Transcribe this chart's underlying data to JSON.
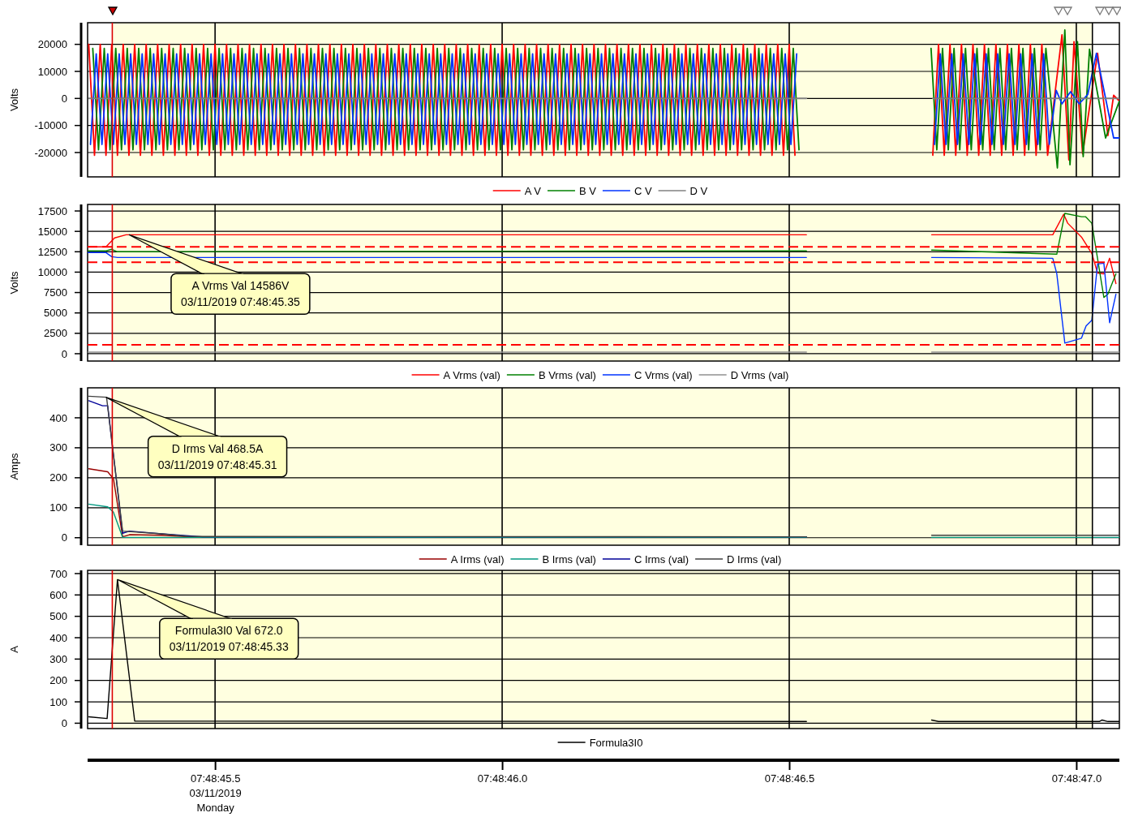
{
  "chart_data": [
    {
      "type": "line",
      "ylabel": "Volts",
      "xlim": [
        "2019-03-11T07:48:45.278",
        "2019-03-11T07:48:47.075"
      ],
      "xticks": [
        "2019-03-11T07:48:45.500",
        "2019-03-11T07:48:46.000",
        "2019-03-11T07:48:46.500",
        "2019-03-11T07:48:47.000"
      ],
      "ylim": [
        -29000,
        28000
      ],
      "yticks": [
        -20000,
        -10000,
        0,
        10000,
        20000
      ],
      "grid": true,
      "tick_labels": "y",
      "legend": "bottom",
      "bands": [
        {
          "axis": "x",
          "from": "2019-03-11T07:48:45.321",
          "to": "2019-03-11T07:48:47.028",
          "color": "#ffffe0"
        }
      ],
      "ref_lines": [
        {
          "axis": "x",
          "value": "2019-03-11T07:48:45.321",
          "color": "#dd0000"
        },
        {
          "axis": "x",
          "value": "2019-03-11T07:48:47.028",
          "color": "#000000"
        }
      ],
      "series": [
        {
          "name": "A V",
          "color": "#ff0000",
          "x": [
            "2019-03-11T07:48:45.28",
            "2019-03-11T07:48:45.29",
            "2019-03-11T07:48:45.30",
            "2019-03-11T07:48:45.31",
            "2019-03-11T07:48:45.32",
            "2019-03-11T07:48:45.33",
            "2019-03-11T07:48:45.34",
            "2019-03-11T07:48:45.35",
            "2019-03-11T07:48:45.36",
            "2019-03-11T07:48:45.37",
            "2019-03-11T07:48:45.38",
            "2019-03-11T07:48:45.39",
            "2019-03-11T07:48:45.40",
            "2019-03-11T07:48:45.41",
            "2019-03-11T07:48:45.42",
            "2019-03-11T07:48:45.43",
            "2019-03-11T07:48:45.44",
            "2019-03-11T07:48:45.45",
            "2019-03-11T07:48:45.46",
            "2019-03-11T07:48:45.47",
            "2019-03-11T07:48:45.48",
            "2019-03-11T07:48:45.49",
            "2019-03-11T07:48:45.50",
            "2019-03-11T07:48:45.51",
            "2019-03-11T07:48:45.52",
            "2019-03-11T07:48:45.53",
            "2019-03-11T07:48:45.54",
            "2019-03-11T07:48:45.55",
            "2019-03-11T07:48:45.56",
            "2019-03-11T07:48:45.57",
            "2019-03-11T07:48:45.58",
            "2019-03-11T07:48:45.59",
            "2019-03-11T07:48:45.60",
            "2019-03-11T07:48:45.61",
            "2019-03-11T07:48:45.62",
            "2019-03-11T07:48:45.63",
            "2019-03-11T07:48:45.64",
            "2019-03-11T07:48:45.65",
            "2019-03-11T07:48:45.66",
            "2019-03-11T07:48:45.67",
            "2019-03-11T07:48:45.68",
            "2019-03-11T07:48:45.69",
            "2019-03-11T07:48:45.70",
            "2019-03-11T07:48:45.71",
            "2019-03-11T07:48:45.72",
            "2019-03-11T07:48:45.73",
            "2019-03-11T07:48:45.74",
            "2019-03-11T07:48:45.75",
            "2019-03-11T07:48:45.76",
            "2019-03-11T07:48:45.77",
            "2019-03-11T07:48:45.78",
            "2019-03-11T07:48:45.79",
            "2019-03-11T07:48:45.80",
            "2019-03-11T07:48:45.81",
            "2019-03-11T07:48:45.82",
            "2019-03-11T07:48:45.83",
            "2019-03-11T07:48:45.84",
            "2019-03-11T07:48:45.85",
            "2019-03-11T07:48:45.86",
            "2019-03-11T07:48:45.87",
            "2019-03-11T07:48:45.88",
            "2019-03-11T07:48:45.89",
            "2019-03-11T07:48:45.90",
            "2019-03-11T07:48:45.91",
            "2019-03-11T07:48:45.92",
            "2019-03-11T07:48:45.93",
            "2019-03-11T07:48:45.94",
            "2019-03-11T07:48:45.95",
            "2019-03-11T07:48:45.96",
            "2019-03-11T07:48:45.97",
            "2019-03-11T07:48:45.98",
            "2019-03-11T07:48:45.99",
            "2019-03-11T07:48:46.00",
            "2019-03-11T07:48:46.01",
            "2019-03-11T07:48:46.02",
            "2019-03-11T07:48:46.03",
            "2019-03-11T07:48:46.04",
            "2019-03-11T07:48:46.05",
            "2019-03-11T07:48:46.06",
            "2019-03-11T07:48:46.07",
            "2019-03-11T07:48:46.08",
            "2019-03-11T07:48:46.09",
            "2019-03-11T07:48:46.10",
            "2019-03-11T07:48:46.11",
            "2019-03-11T07:48:46.12",
            "2019-03-11T07:48:46.13",
            "2019-03-11T07:48:46.14",
            "2019-03-11T07:48:46.15",
            "2019-03-11T07:48:46.16",
            "2019-03-11T07:48:46.17",
            "2019-03-11T07:48:46.18",
            "2019-03-11T07:48:46.19",
            "2019-03-11T07:48:46.20",
            "2019-03-11T07:48:46.21",
            "2019-03-11T07:48:46.22",
            "2019-03-11T07:48:46.23",
            "2019-03-11T07:48:46.24",
            "2019-03-11T07:48:46.25",
            "2019-03-11T07:48:46.26",
            "2019-03-11T07:48:46.27",
            "2019-03-11T07:48:46.28",
            "2019-03-11T07:48:46.29",
            "2019-03-11T07:48:46.30",
            "2019-03-11T07:48:46.31",
            "2019-03-11T07:48:46.32",
            "2019-03-11T07:48:46.33",
            "2019-03-11T07:48:46.34",
            "2019-03-11T07:48:46.35",
            "2019-03-11T07:48:46.36",
            "2019-03-11T07:48:46.37",
            "2019-03-11T07:48:46.38",
            "2019-03-11T07:48:46.39",
            "2019-03-11T07:48:46.40",
            "2019-03-11T07:48:46.41",
            "2019-03-11T07:48:46.42",
            "2019-03-11T07:48:46.43",
            "2019-03-11T07:48:46.44",
            "2019-03-11T07:48:46.45",
            "2019-03-11T07:48:46.46",
            "2019-03-11T07:48:46.47",
            "2019-03-11T07:48:46.48",
            "2019-03-11T07:48:46.49",
            "2019-03-11T07:48:46.50",
            "2019-03-11T07:48:46.51",
            "2019-03-11T07:48:46.60",
            "2019-03-11T07:48:46.75",
            "2019-03-11T07:48:46.76",
            "2019-03-11T07:48:46.77",
            "2019-03-11T07:48:46.78",
            "2019-03-11T07:48:46.79",
            "2019-03-11T07:48:46.80",
            "2019-03-11T07:48:46.81",
            "2019-03-11T07:48:46.82",
            "2019-03-11T07:48:46.83",
            "2019-03-11T07:48:46.84",
            "2019-03-11T07:48:46.85",
            "2019-03-11T07:48:46.86",
            "2019-03-11T07:48:46.87",
            "2019-03-11T07:48:46.88",
            "2019-03-11T07:48:46.89",
            "2019-03-11T07:48:46.90",
            "2019-03-11T07:48:46.91",
            "2019-03-11T07:48:46.92",
            "2019-03-11T07:48:46.93",
            "2019-03-11T07:48:46.94",
            "2019-03-11T07:48:46.95",
            "2019-03-11T07:48:46.975",
            "2019-03-11T07:48:46.987",
            "2019-03-11T07:48:46.996",
            "2019-03-11T07:48:47.011",
            "2019-03-11T07:48:47.037",
            "2019-03-11T07:48:47.055",
            "2019-03-11T07:48:47.065",
            "2019-03-11T07:48:47.075"
          ],
          "values": [
            20000,
            -21000,
            20000,
            -21000,
            20000,
            -21000,
            20000,
            -21000,
            20000,
            -21000,
            20000,
            -21000,
            20000,
            -21000,
            20000,
            -21000,
            20000,
            -21000,
            20000,
            -21000,
            20000,
            -21000,
            20000,
            -21000,
            20000,
            -21000,
            20000,
            -21000,
            20000,
            -21000,
            20000,
            -21000,
            20000,
            -21000,
            20000,
            -21000,
            20000,
            -21000,
            20000,
            -21000,
            20000,
            -21000,
            20000,
            -21000,
            20000,
            -21000,
            20000,
            -21000,
            20000,
            -21000,
            20000,
            -21000,
            20000,
            -21000,
            20000,
            -21000,
            20000,
            -21000,
            20000,
            -21000,
            20000,
            -21000,
            20000,
            -21000,
            20000,
            -21000,
            20000,
            -21000,
            20000,
            -21000,
            20000,
            -21000,
            20000,
            -21000,
            20000,
            -21000,
            20000,
            -21000,
            20000,
            -21000,
            20000,
            -21000,
            20000,
            -21000,
            20000,
            -21000,
            20000,
            -21000,
            20000,
            -21000,
            20000,
            -21000,
            20000,
            -21000,
            20000,
            -21000,
            20000,
            -21000,
            20000,
            -21000,
            20000,
            -21000,
            20000,
            -21000,
            20000,
            -21000,
            20000,
            -21000,
            20000,
            -21000,
            20000,
            -21000,
            20000,
            -21000,
            20000,
            -21000,
            20000,
            -21000,
            20000,
            -21000,
            20000,
            -21000,
            20000,
            -21000,
            null,
            -21000,
            20000,
            -21000,
            20000,
            -21000,
            20000,
            -21000,
            20000,
            -21000,
            20000,
            -21000,
            20000,
            -21000,
            20000,
            -21000,
            20000,
            -21000,
            20000,
            -21000,
            20000,
            -21000,
            23500,
            -22700,
            21000,
            -20500,
            16700,
            -13700,
            1200,
            -1000
          ]
        },
        {
          "name": "B V",
          "color": "#008000",
          "x": [
            "2019-03-11T07:48:45.287",
            "2019-03-11T07:48:45.297",
            "2019-03-11T07:48:45.307",
            "2019-03-11T07:48:45.317",
            "2019-03-11T07:48:45.327",
            "2019-03-11T07:48:45.337",
            "2019-03-11T07:48:45.347",
            "2019-03-11T07:48:45.357",
            "2019-03-11T07:48:45.367",
            "2019-03-11T07:48:45.377",
            "2019-03-11T07:48:45.387",
            "2019-03-11T07:48:45.397",
            "2019-03-11T07:48:45.407",
            "2019-03-11T07:48:45.417",
            "2019-03-11T07:48:45.427",
            "2019-03-11T07:48:45.437",
            "2019-03-11T07:48:45.447",
            "2019-03-11T07:48:45.457",
            "2019-03-11T07:48:45.467",
            "2019-03-11T07:48:45.477",
            "2019-03-11T07:48:45.487",
            "2019-03-11T07:48:45.497",
            "2019-03-11T07:48:45.507",
            "2019-03-11T07:48:45.517",
            "2019-03-11T07:48:45.527",
            "2019-03-11T07:48:45.537",
            "2019-03-11T07:48:45.547",
            "2019-03-11T07:48:45.557",
            "2019-03-11T07:48:45.567",
            "2019-03-11T07:48:45.577",
            "2019-03-11T07:48:45.587",
            "2019-03-11T07:48:45.597",
            "2019-03-11T07:48:45.607",
            "2019-03-11T07:48:45.617",
            "2019-03-11T07:48:45.627",
            "2019-03-11T07:48:45.637",
            "2019-03-11T07:48:45.647",
            "2019-03-11T07:48:45.657",
            "2019-03-11T07:48:45.667",
            "2019-03-11T07:48:45.677",
            "2019-03-11T07:48:45.687",
            "2019-03-11T07:48:45.697",
            "2019-03-11T07:48:45.707",
            "2019-03-11T07:48:45.717",
            "2019-03-11T07:48:45.727",
            "2019-03-11T07:48:45.737",
            "2019-03-11T07:48:45.747",
            "2019-03-11T07:48:45.757",
            "2019-03-11T07:48:45.767",
            "2019-03-11T07:48:45.777",
            "2019-03-11T07:48:45.787",
            "2019-03-11T07:48:45.797",
            "2019-03-11T07:48:45.807",
            "2019-03-11T07:48:45.817",
            "2019-03-11T07:48:45.827",
            "2019-03-11T07:48:45.837",
            "2019-03-11T07:48:45.847",
            "2019-03-11T07:48:45.857",
            "2019-03-11T07:48:45.867",
            "2019-03-11T07:48:45.877",
            "2019-03-11T07:48:45.887",
            "2019-03-11T07:48:45.897",
            "2019-03-11T07:48:45.907",
            "2019-03-11T07:48:45.917",
            "2019-03-11T07:48:45.927",
            "2019-03-11T07:48:45.937",
            "2019-03-11T07:48:45.947",
            "2019-03-11T07:48:45.957",
            "2019-03-11T07:48:45.967",
            "2019-03-11T07:48:45.977",
            "2019-03-11T07:48:45.987",
            "2019-03-11T07:48:45.997",
            "2019-03-11T07:48:46.007",
            "2019-03-11T07:48:46.017",
            "2019-03-11T07:48:46.027",
            "2019-03-11T07:48:46.037",
            "2019-03-11T07:48:46.047",
            "2019-03-11T07:48:46.057",
            "2019-03-11T07:48:46.067",
            "2019-03-11T07:48:46.077",
            "2019-03-11T07:48:46.087",
            "2019-03-11T07:48:46.097",
            "2019-03-11T07:48:46.107",
            "2019-03-11T07:48:46.117",
            "2019-03-11T07:48:46.127",
            "2019-03-11T07:48:46.137",
            "2019-03-11T07:48:46.147",
            "2019-03-11T07:48:46.157",
            "2019-03-11T07:48:46.167",
            "2019-03-11T07:48:46.177",
            "2019-03-11T07:48:46.187",
            "2019-03-11T07:48:46.197",
            "2019-03-11T07:48:46.207",
            "2019-03-11T07:48:46.217",
            "2019-03-11T07:48:46.227",
            "2019-03-11T07:48:46.237",
            "2019-03-11T07:48:46.247",
            "2019-03-11T07:48:46.257",
            "2019-03-11T07:48:46.267",
            "2019-03-11T07:48:46.277",
            "2019-03-11T07:48:46.287",
            "2019-03-11T07:48:46.297",
            "2019-03-11T07:48:46.307",
            "2019-03-11T07:48:46.317",
            "2019-03-11T07:48:46.327",
            "2019-03-11T07:48:46.337",
            "2019-03-11T07:48:46.347",
            "2019-03-11T07:48:46.357",
            "2019-03-11T07:48:46.367",
            "2019-03-11T07:48:46.377",
            "2019-03-11T07:48:46.387",
            "2019-03-11T07:48:46.397",
            "2019-03-11T07:48:46.407",
            "2019-03-11T07:48:46.417",
            "2019-03-11T07:48:46.427",
            "2019-03-11T07:48:46.437",
            "2019-03-11T07:48:46.447",
            "2019-03-11T07:48:46.457",
            "2019-03-11T07:48:46.467",
            "2019-03-11T07:48:46.477",
            "2019-03-11T07:48:46.487",
            "2019-03-11T07:48:46.497",
            "2019-03-11T07:48:46.507",
            "2019-03-11T07:48:46.517",
            "2019-03-11T07:48:46.600",
            "2019-03-11T07:48:46.747",
            "2019-03-11T07:48:46.757",
            "2019-03-11T07:48:46.767",
            "2019-03-11T07:48:46.777",
            "2019-03-11T07:48:46.787",
            "2019-03-11T07:48:46.797",
            "2019-03-11T07:48:46.807",
            "2019-03-11T07:48:46.817",
            "2019-03-11T07:48:46.827",
            "2019-03-11T07:48:46.837",
            "2019-03-11T07:48:46.847",
            "2019-03-11T07:48:46.857",
            "2019-03-11T07:48:46.867",
            "2019-03-11T07:48:46.877",
            "2019-03-11T07:48:46.887",
            "2019-03-11T07:48:46.897",
            "2019-03-11T07:48:46.907",
            "2019-03-11T07:48:46.917",
            "2019-03-11T07:48:46.927",
            "2019-03-11T07:48:46.937",
            "2019-03-11T07:48:46.947",
            "2019-03-11T07:48:46.967",
            "2019-03-11T07:48:46.980",
            "2019-03-11T07:48:46.989",
            "2019-03-11T07:48:47.002",
            "2019-03-11T07:48:47.012",
            "2019-03-11T07:48:47.023",
            "2019-03-11T07:48:47.051",
            "2019-03-11T07:48:47.075"
          ],
          "values": [
            18500,
            -19000,
            18500,
            -19000,
            18500,
            -19000,
            18500,
            -19000,
            18500,
            -19000,
            18500,
            -19000,
            18500,
            -19000,
            18500,
            -19000,
            18500,
            -19000,
            18500,
            -19000,
            18500,
            -19000,
            18500,
            -19000,
            18500,
            -19000,
            18500,
            -19000,
            18500,
            -19000,
            18500,
            -19000,
            18500,
            -19000,
            18500,
            -19000,
            18500,
            -19000,
            18500,
            -19000,
            18500,
            -19000,
            18500,
            -19000,
            18500,
            -19000,
            18500,
            -19000,
            18500,
            -19000,
            18500,
            -19000,
            18500,
            -19000,
            18500,
            -19000,
            18500,
            -19000,
            18500,
            -19000,
            18500,
            -19000,
            18500,
            -19000,
            18500,
            -19000,
            18500,
            -19000,
            18500,
            -19000,
            18500,
            -19000,
            18500,
            -19000,
            18500,
            -19000,
            18500,
            -19000,
            18500,
            -19000,
            18500,
            -19000,
            18500,
            -19000,
            18500,
            -19000,
            18500,
            -19000,
            18500,
            -19000,
            18500,
            -19000,
            18500,
            -19000,
            18500,
            -19000,
            18500,
            -19000,
            18500,
            -19000,
            18500,
            -19000,
            18500,
            -19000,
            18500,
            -19000,
            18500,
            -19000,
            18500,
            -19000,
            18500,
            -19000,
            18500,
            -19000,
            18500,
            -19000,
            18500,
            -19000,
            18500,
            -19000,
            18500,
            -19000,
            18500,
            -19000,
            null,
            18500,
            -19000,
            18500,
            -19000,
            18500,
            -19000,
            18500,
            -19000,
            18500,
            -19000,
            18500,
            -19000,
            18500,
            -19000,
            18500,
            -19000,
            18500,
            -19000,
            18500,
            -19000,
            18500,
            -25700,
            25300,
            -24500,
            21000,
            -21500,
            18200,
            -14600,
            -1000
          ]
        },
        {
          "name": "C V",
          "color": "#0033ff",
          "x": [
            "2019-03-11T07:48:45.283",
            "2019-03-11T07:48:45.293",
            "2019-03-11T07:48:45.303",
            "2019-03-11T07:48:45.313",
            "2019-03-11T07:48:45.323",
            "2019-03-11T07:48:45.333",
            "2019-03-11T07:48:45.343",
            "2019-03-11T07:48:45.353",
            "2019-03-11T07:48:45.363",
            "2019-03-11T07:48:45.373",
            "2019-03-11T07:48:45.383",
            "2019-03-11T07:48:45.393",
            "2019-03-11T07:48:45.403",
            "2019-03-11T07:48:45.413",
            "2019-03-11T07:48:45.423",
            "2019-03-11T07:48:45.433",
            "2019-03-11T07:48:45.443",
            "2019-03-11T07:48:45.453",
            "2019-03-11T07:48:45.463",
            "2019-03-11T07:48:45.473",
            "2019-03-11T07:48:45.483",
            "2019-03-11T07:48:45.493",
            "2019-03-11T07:48:45.503",
            "2019-03-11T07:48:45.513",
            "2019-03-11T07:48:45.523",
            "2019-03-11T07:48:45.533",
            "2019-03-11T07:48:45.543",
            "2019-03-11T07:48:45.553",
            "2019-03-11T07:48:45.563",
            "2019-03-11T07:48:45.573",
            "2019-03-11T07:48:45.583",
            "2019-03-11T07:48:45.593",
            "2019-03-11T07:48:45.603",
            "2019-03-11T07:48:45.613",
            "2019-03-11T07:48:45.623",
            "2019-03-11T07:48:45.633",
            "2019-03-11T07:48:45.643",
            "2019-03-11T07:48:45.653",
            "2019-03-11T07:48:45.663",
            "2019-03-11T07:48:45.673",
            "2019-03-11T07:48:45.683",
            "2019-03-11T07:48:45.693",
            "2019-03-11T07:48:45.703",
            "2019-03-11T07:48:45.713",
            "2019-03-11T07:48:45.723",
            "2019-03-11T07:48:45.733",
            "2019-03-11T07:48:45.743",
            "2019-03-11T07:48:45.753",
            "2019-03-11T07:48:45.763",
            "2019-03-11T07:48:45.773",
            "2019-03-11T07:48:45.783",
            "2019-03-11T07:48:45.793",
            "2019-03-11T07:48:45.803",
            "2019-03-11T07:48:45.813",
            "2019-03-11T07:48:45.823",
            "2019-03-11T07:48:45.833",
            "2019-03-11T07:48:45.843",
            "2019-03-11T07:48:45.853",
            "2019-03-11T07:48:45.863",
            "2019-03-11T07:48:45.873",
            "2019-03-11T07:48:45.883",
            "2019-03-11T07:48:45.893",
            "2019-03-11T07:48:45.903",
            "2019-03-11T07:48:45.913",
            "2019-03-11T07:48:45.923",
            "2019-03-11T07:48:45.933",
            "2019-03-11T07:48:45.943",
            "2019-03-11T07:48:45.953",
            "2019-03-11T07:48:45.963",
            "2019-03-11T07:48:45.973",
            "2019-03-11T07:48:45.983",
            "2019-03-11T07:48:45.993",
            "2019-03-11T07:48:46.003",
            "2019-03-11T07:48:46.013",
            "2019-03-11T07:48:46.023",
            "2019-03-11T07:48:46.033",
            "2019-03-11T07:48:46.043",
            "2019-03-11T07:48:46.053",
            "2019-03-11T07:48:46.063",
            "2019-03-11T07:48:46.073",
            "2019-03-11T07:48:46.083",
            "2019-03-11T07:48:46.093",
            "2019-03-11T07:48:46.103",
            "2019-03-11T07:48:46.113",
            "2019-03-11T07:48:46.123",
            "2019-03-11T07:48:46.133",
            "2019-03-11T07:48:46.143",
            "2019-03-11T07:48:46.153",
            "2019-03-11T07:48:46.163",
            "2019-03-11T07:48:46.173",
            "2019-03-11T07:48:46.183",
            "2019-03-11T07:48:46.193",
            "2019-03-11T07:48:46.203",
            "2019-03-11T07:48:46.213",
            "2019-03-11T07:48:46.223",
            "2019-03-11T07:48:46.233",
            "2019-03-11T07:48:46.243",
            "2019-03-11T07:48:46.253",
            "2019-03-11T07:48:46.263",
            "2019-03-11T07:48:46.273",
            "2019-03-11T07:48:46.283",
            "2019-03-11T07:48:46.293",
            "2019-03-11T07:48:46.303",
            "2019-03-11T07:48:46.313",
            "2019-03-11T07:48:46.323",
            "2019-03-11T07:48:46.333",
            "2019-03-11T07:48:46.343",
            "2019-03-11T07:48:46.353",
            "2019-03-11T07:48:46.363",
            "2019-03-11T07:48:46.373",
            "2019-03-11T07:48:46.383",
            "2019-03-11T07:48:46.393",
            "2019-03-11T07:48:46.403",
            "2019-03-11T07:48:46.413",
            "2019-03-11T07:48:46.423",
            "2019-03-11T07:48:46.433",
            "2019-03-11T07:48:46.443",
            "2019-03-11T07:48:46.453",
            "2019-03-11T07:48:46.463",
            "2019-03-11T07:48:46.473",
            "2019-03-11T07:48:46.483",
            "2019-03-11T07:48:46.493",
            "2019-03-11T07:48:46.503",
            "2019-03-11T07:48:46.513",
            "2019-03-11T07:48:46.600",
            "2019-03-11T07:48:46.753",
            "2019-03-11T07:48:46.763",
            "2019-03-11T07:48:46.773",
            "2019-03-11T07:48:46.783",
            "2019-03-11T07:48:46.793",
            "2019-03-11T07:48:46.803",
            "2019-03-11T07:48:46.813",
            "2019-03-11T07:48:46.823",
            "2019-03-11T07:48:46.833",
            "2019-03-11T07:48:46.843",
            "2019-03-11T07:48:46.853",
            "2019-03-11T07:48:46.863",
            "2019-03-11T07:48:46.873",
            "2019-03-11T07:48:46.883",
            "2019-03-11T07:48:46.893",
            "2019-03-11T07:48:46.903",
            "2019-03-11T07:48:46.913",
            "2019-03-11T07:48:46.923",
            "2019-03-11T07:48:46.933",
            "2019-03-11T07:48:46.943",
            "2019-03-11T07:48:46.953",
            "2019-03-11T07:48:46.965",
            "2019-03-11T07:48:46.975",
            "2019-03-11T07:48:46.990",
            "2019-03-11T07:48:47.005",
            "2019-03-11T07:48:47.020",
            "2019-03-11T07:48:47.035",
            "2019-03-11T07:48:47.065",
            "2019-03-11T07:48:47.075"
          ],
          "values": [
            -17000,
            16500,
            -17000,
            16500,
            -17000,
            16500,
            -17000,
            16500,
            -17000,
            16500,
            -17000,
            16500,
            -17000,
            16500,
            -17000,
            16500,
            -17000,
            16500,
            -17000,
            16500,
            -17000,
            16500,
            -17000,
            16500,
            -17000,
            16500,
            -17000,
            16500,
            -17000,
            16500,
            -17000,
            16500,
            -17000,
            16500,
            -17000,
            16500,
            -17000,
            16500,
            -17000,
            16500,
            -17000,
            16500,
            -17000,
            16500,
            -17000,
            16500,
            -17000,
            16500,
            -17000,
            16500,
            -17000,
            16500,
            -17000,
            16500,
            -17000,
            16500,
            -17000,
            16500,
            -17000,
            16500,
            -17000,
            16500,
            -17000,
            16500,
            -17000,
            16500,
            -17000,
            16500,
            -17000,
            16500,
            -17000,
            16500,
            -17000,
            16500,
            -17000,
            16500,
            -17000,
            16500,
            -17000,
            16500,
            -17000,
            16500,
            -17000,
            16500,
            -17000,
            16500,
            -17000,
            16500,
            -17000,
            16500,
            -17000,
            16500,
            -17000,
            16500,
            -17000,
            16500,
            -17000,
            16500,
            -17000,
            16500,
            -17000,
            16500,
            -17000,
            16500,
            -17000,
            16500,
            -17000,
            16500,
            -17000,
            16500,
            -17000,
            16500,
            -17000,
            16500,
            -17000,
            16500,
            -17000,
            16500,
            -17000,
            16500,
            -17000,
            16500,
            -17000,
            16500,
            null,
            -17000,
            16500,
            -17000,
            16500,
            -17000,
            16500,
            -17000,
            16500,
            -17000,
            16500,
            -17000,
            16500,
            -17000,
            16500,
            -17000,
            16500,
            -17000,
            16500,
            -17000,
            16500,
            -17000,
            3000,
            -2000,
            2500,
            -2000,
            1500,
            16700,
            -14600,
            -14600
          ]
        },
        {
          "name": "D V",
          "color": "#808080",
          "x": [
            "2019-03-11T07:48:45.28",
            "2019-03-11T07:48:46.53",
            "2019-03-11T07:48:46.60",
            "2019-03-11T07:48:46.75",
            "2019-03-11T07:48:47.075"
          ],
          "values": [
            0,
            0,
            null,
            0,
            0
          ]
        }
      ]
    },
    {
      "type": "line",
      "ylabel": "Volts",
      "xlim": [
        "2019-03-11T07:48:45.278",
        "2019-03-11T07:48:47.075"
      ],
      "xticks": [
        "2019-03-11T07:48:45.500",
        "2019-03-11T07:48:46.000",
        "2019-03-11T07:48:46.500",
        "2019-03-11T07:48:47.000"
      ],
      "ylim": [
        -900,
        18300
      ],
      "yticks": [
        0,
        2500,
        5000,
        7500,
        10000,
        12500,
        15000,
        17500
      ],
      "grid": true,
      "tick_labels": "y",
      "legend": "bottom",
      "bands": [
        {
          "axis": "x",
          "from": "2019-03-11T07:48:45.321",
          "to": "2019-03-11T07:48:47.028",
          "color": "#ffffe0"
        }
      ],
      "ref_lines": [
        {
          "axis": "y",
          "value": 13100,
          "color": "#ff0000",
          "line_style": "dashed"
        },
        {
          "axis": "y",
          "value": 11200,
          "color": "#ff0000",
          "line_style": "dashed"
        },
        {
          "axis": "y",
          "value": 1100,
          "color": "#ff0000",
          "line_style": "dashed"
        },
        {
          "axis": "x",
          "value": "2019-03-11T07:48:45.321",
          "color": "#dd0000"
        },
        {
          "axis": "x",
          "value": "2019-03-11T07:48:47.028",
          "color": "#000000"
        }
      ],
      "annotations": [
        {
          "text": "A Vrms Val 14586V\n03/11/2019 07:48:45.35",
          "x": "2019-03-11T07:48:45.35",
          "y": 14586
        }
      ],
      "series": [
        {
          "name": "A Vrms (val)",
          "color": "#ff0000",
          "x": [
            "2019-03-11T07:48:45.278",
            "2019-03-11T07:48:45.310",
            "2019-03-11T07:48:45.325",
            "2019-03-11T07:48:45.345",
            "2019-03-11T07:48:46.530",
            "2019-03-11T07:48:46.600",
            "2019-03-11T07:48:46.748",
            "2019-03-11T07:48:46.959",
            "2019-03-11T07:48:46.978",
            "2019-03-11T07:48:46.985",
            "2019-03-11T07:48:47.009",
            "2019-03-11T07:48:47.027",
            "2019-03-11T07:48:47.037",
            "2019-03-11T07:48:47.048",
            "2019-03-11T07:48:47.058",
            "2019-03-11T07:48:47.069"
          ],
          "values": [
            13100,
            13100,
            14200,
            14586,
            14586,
            null,
            14586,
            14586,
            17100,
            16000,
            14300,
            12300,
            9900,
            9800,
            11700,
            8600
          ]
        },
        {
          "name": "B Vrms (val)",
          "color": "#008000",
          "x": [
            "2019-03-11T07:48:45.278",
            "2019-03-11T07:48:45.310",
            "2019-03-11T07:48:45.320",
            "2019-03-11T07:48:45.330",
            "2019-03-11T07:48:46.530",
            "2019-03-11T07:48:46.600",
            "2019-03-11T07:48:46.748",
            "2019-03-11T07:48:46.966",
            "2019-03-11T07:48:46.980",
            "2019-03-11T07:48:47.009",
            "2019-03-11T07:48:47.016",
            "2019-03-11T07:48:47.027",
            "2019-03-11T07:48:47.048",
            "2019-03-11T07:48:47.055",
            "2019-03-11T07:48:47.069"
          ],
          "values": [
            12600,
            12600,
            12800,
            12500,
            12600,
            null,
            12700,
            12200,
            17200,
            16800,
            16800,
            16000,
            6900,
            7300,
            9800
          ]
        },
        {
          "name": "C Vrms (val)",
          "color": "#0033ff",
          "x": [
            "2019-03-11T07:48:45.278",
            "2019-03-11T07:48:45.310",
            "2019-03-11T07:48:45.320",
            "2019-03-11T07:48:45.330",
            "2019-03-11T07:48:46.530",
            "2019-03-11T07:48:46.600",
            "2019-03-11T07:48:46.748",
            "2019-03-11T07:48:46.959",
            "2019-03-11T07:48:46.966",
            "2019-03-11T07:48:46.980",
            "2019-03-11T07:48:47.009",
            "2019-03-11T07:48:47.017",
            "2019-03-11T07:48:47.027",
            "2019-03-11T07:48:47.037",
            "2019-03-11T07:48:47.048",
            "2019-03-11T07:48:47.058",
            "2019-03-11T07:48:47.069"
          ],
          "values": [
            12400,
            12400,
            11900,
            11800,
            11800,
            null,
            11800,
            11700,
            9800,
            1300,
            1900,
            3400,
            4100,
            11000,
            11100,
            3800,
            7300
          ]
        },
        {
          "name": "D Vrms (val)",
          "color": "#909090",
          "x": [
            "2019-03-11T07:48:45.278",
            "2019-03-11T07:48:46.530",
            "2019-03-11T07:48:46.600",
            "2019-03-11T07:48:46.748",
            "2019-03-11T07:48:47.075"
          ],
          "values": [
            200,
            200,
            null,
            200,
            200
          ]
        }
      ]
    },
    {
      "type": "line",
      "ylabel": "Amps",
      "xlim": [
        "2019-03-11T07:48:45.278",
        "2019-03-11T07:48:47.075"
      ],
      "xticks": [
        "2019-03-11T07:48:45.500",
        "2019-03-11T07:48:46.000",
        "2019-03-11T07:48:46.500",
        "2019-03-11T07:48:47.000"
      ],
      "ylim": [
        -25,
        500
      ],
      "yticks": [
        0,
        100,
        200,
        300,
        400
      ],
      "grid": true,
      "tick_labels": "y",
      "legend": "bottom",
      "bands": [
        {
          "axis": "x",
          "from": "2019-03-11T07:48:45.321",
          "to": "2019-03-11T07:48:47.028",
          "color": "#ffffe0"
        }
      ],
      "ref_lines": [
        {
          "axis": "x",
          "value": "2019-03-11T07:48:45.321",
          "color": "#dd0000"
        },
        {
          "axis": "x",
          "value": "2019-03-11T07:48:47.028",
          "color": "#000000"
        }
      ],
      "annotations": [
        {
          "text": "D Irms Val 468.5A\n03/11/2019 07:48:45.31",
          "x": "2019-03-11T07:48:45.31",
          "y": 468.5
        }
      ],
      "series": [
        {
          "name": "A Irms (val)",
          "color": "#990000",
          "x": [
            "2019-03-11T07:48:45.280",
            "2019-03-11T07:48:45.313",
            "2019-03-11T07:48:45.323",
            "2019-03-11T07:48:45.339",
            "2019-03-11T07:48:45.351",
            "2019-03-11T07:48:45.407",
            "2019-03-11T07:48:45.454",
            "2019-03-11T07:48:46.530"
          ],
          "values": [
            230,
            220,
            197,
            3,
            10,
            8,
            3,
            2
          ]
        },
        {
          "name": "B Irms (val)",
          "color": "#009980",
          "x": [
            "2019-03-11T07:48:45.280",
            "2019-03-11T07:48:45.313",
            "2019-03-11T07:48:45.323",
            "2019-03-11T07:48:45.339",
            "2019-03-11T07:48:45.454",
            "2019-03-11T07:48:46.530",
            "2019-03-11T07:48:46.600",
            "2019-03-11T07:48:46.748",
            "2019-03-11T07:48:47.075"
          ],
          "values": [
            112,
            103,
            85,
            1,
            1,
            1,
            null,
            1,
            1
          ]
        },
        {
          "name": "C Irms (val)",
          "color": "#000099",
          "x": [
            "2019-03-11T07:48:45.280",
            "2019-03-11T07:48:45.304",
            "2019-03-11T07:48:45.313",
            "2019-03-11T07:48:45.339",
            "2019-03-11T07:48:45.351",
            "2019-03-11T07:48:45.407",
            "2019-03-11T07:48:45.478",
            "2019-03-11T07:48:46.530"
          ],
          "values": [
            457,
            440,
            440,
            15,
            22,
            13,
            3,
            3
          ]
        },
        {
          "name": "D Irms (val)",
          "color": "#404040",
          "x": [
            "2019-03-11T07:48:45.280",
            "2019-03-11T07:48:45.311",
            "2019-03-11T07:48:45.339",
            "2019-03-11T07:48:45.407",
            "2019-03-11T07:48:45.454",
            "2019-03-11T07:48:46.530",
            "2019-03-11T07:48:46.600",
            "2019-03-11T07:48:46.748",
            "2019-03-11T07:48:47.075"
          ],
          "values": [
            472,
            468.5,
            22,
            13,
            4,
            3,
            null,
            8,
            8
          ]
        }
      ]
    },
    {
      "type": "line",
      "ylabel": "A",
      "xlim": [
        "2019-03-11T07:48:45.278",
        "2019-03-11T07:48:47.075"
      ],
      "xticks": [
        {
          "value": "2019-03-11T07:48:45.500",
          "label": "07:48:45.5\n03/11/2019\nMonday"
        },
        {
          "value": "2019-03-11T07:48:46.000",
          "label": "07:48:46.0"
        },
        {
          "value": "2019-03-11T07:48:46.500",
          "label": "07:48:46.5"
        },
        {
          "value": "2019-03-11T07:48:47.000",
          "label": "07:48:47.0"
        }
      ],
      "ylim": [
        -25,
        715
      ],
      "yticks": [
        0,
        100,
        200,
        300,
        400,
        500,
        600,
        700
      ],
      "grid": true,
      "legend": "bottom",
      "bands": [
        {
          "axis": "x",
          "from": "2019-03-11T07:48:45.321",
          "to": "2019-03-11T07:48:47.028",
          "color": "#ffffe0"
        }
      ],
      "ref_lines": [
        {
          "axis": "x",
          "value": "2019-03-11T07:48:45.321",
          "color": "#dd0000"
        },
        {
          "axis": "x",
          "value": "2019-03-11T07:48:47.028",
          "color": "#000000"
        }
      ],
      "annotations": [
        {
          "text": "Formula3I0 Val 672.0\n03/11/2019 07:48:45.33",
          "x": "2019-03-11T07:48:45.33",
          "y": 672
        }
      ],
      "series": [
        {
          "name": "Formula3I0",
          "color": "#000000",
          "x": [
            "2019-03-11T07:48:45.280",
            "2019-03-11T07:48:45.312",
            "2019-03-11T07:48:45.330",
            "2019-03-11T07:48:45.360",
            "2019-03-11T07:48:46.530",
            "2019-03-11T07:48:46.600",
            "2019-03-11T07:48:46.748",
            "2019-03-11T07:48:46.760",
            "2019-03-11T07:48:47.040",
            "2019-03-11T07:48:47.045",
            "2019-03-11T07:48:47.055",
            "2019-03-11T07:48:47.075"
          ],
          "values": [
            30,
            22,
            672,
            10,
            8,
            null,
            15,
            8,
            8,
            15,
            8,
            8
          ]
        }
      ]
    }
  ]
}
